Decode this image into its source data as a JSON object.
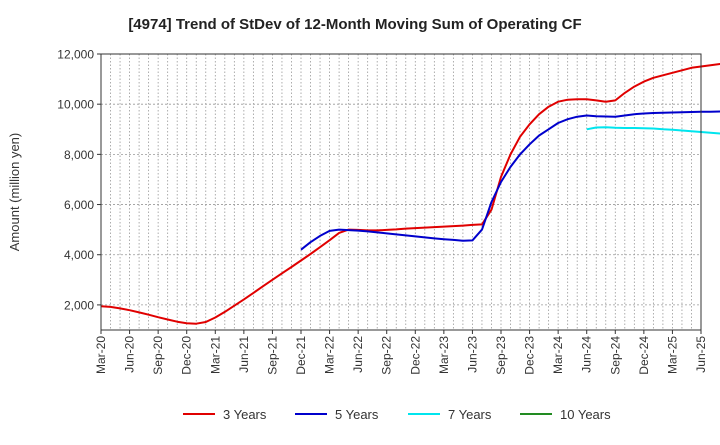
{
  "chart_data": {
    "type": "line",
    "title": "[4974]  Trend of StDev of 12-Month Moving Sum of Operating CF",
    "ylabel": "Amount (million yen)",
    "xlabel": "",
    "ylim": [
      1000,
      12000
    ],
    "yticks": [
      2000,
      4000,
      6000,
      8000,
      10000,
      12000
    ],
    "ytick_labels": [
      "2,000",
      "4,000",
      "6,000",
      "8,000",
      "10,000",
      "12,000"
    ],
    "x_tick_labels": [
      "Mar-20",
      "Jun-20",
      "Sep-20",
      "Dec-20",
      "Mar-21",
      "Jun-21",
      "Sep-21",
      "Dec-21",
      "Mar-22",
      "Jun-22",
      "Sep-22",
      "Dec-22",
      "Mar-23",
      "Jun-23",
      "Sep-23",
      "Dec-23",
      "Mar-24",
      "Jun-24",
      "Sep-24",
      "Dec-24",
      "Mar-25",
      "Jun-25"
    ],
    "x_start": "Mar-20",
    "grid": true,
    "legend_position": "bottom",
    "series": [
      {
        "name": "3 Years",
        "color": "#e00000",
        "start_index": 0,
        "values": [
          1950,
          1920,
          1860,
          1790,
          1700,
          1610,
          1510,
          1420,
          1330,
          1270,
          1250,
          1320,
          1500,
          1720,
          1970,
          2220,
          2480,
          2740,
          3000,
          3260,
          3510,
          3770,
          4030,
          4300,
          4580,
          4870,
          5000,
          4990,
          4970,
          4970,
          4990,
          5010,
          5040,
          5060,
          5080,
          5100,
          5120,
          5140,
          5160,
          5190,
          5210,
          5800,
          7100,
          8000,
          8700,
          9200,
          9600,
          9900,
          10100,
          10180,
          10200,
          10200,
          10150,
          10100,
          10150,
          10450,
          10700,
          10900,
          11050,
          11150,
          11250,
          11350,
          11450,
          11500,
          11550,
          11600,
          11650,
          11700,
          11750,
          11780
        ]
      },
      {
        "name": "5 Years",
        "color": "#0000cc",
        "start_index": 21,
        "values": [
          4200,
          4500,
          4750,
          4950,
          5000,
          4980,
          4960,
          4930,
          4890,
          4850,
          4810,
          4770,
          4730,
          4690,
          4650,
          4620,
          4590,
          4560,
          4570,
          5000,
          6100,
          6900,
          7500,
          8000,
          8400,
          8750,
          9000,
          9250,
          9400,
          9500,
          9550,
          9520,
          9510,
          9500,
          9550,
          9600,
          9630,
          9650,
          9660,
          9670,
          9680,
          9690,
          9700,
          9700,
          9710,
          9715,
          9720,
          9720,
          9725
        ]
      },
      {
        "name": "7 Years",
        "color": "#00e5ee",
        "start_index": 51,
        "values": [
          9000,
          9070,
          9080,
          9060,
          9050,
          9050,
          9040,
          9030,
          9000,
          8980,
          8950,
          8920,
          8890,
          8860,
          8830,
          8800,
          8780,
          8760,
          8740
        ]
      },
      {
        "name": "10 Years",
        "color": "#228b22",
        "start_index": 0,
        "values": []
      }
    ]
  }
}
